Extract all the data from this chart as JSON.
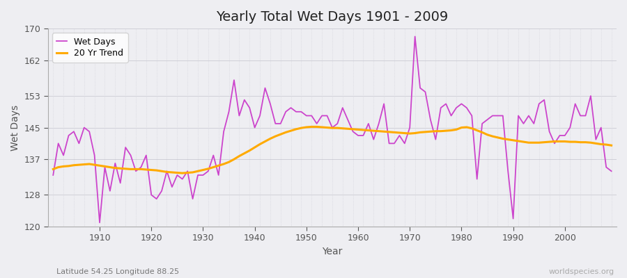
{
  "title": "Yearly Total Wet Days 1901 - 2009",
  "xlabel": "Year",
  "ylabel": "Wet Days",
  "subtitle_left": "Latitude 54.25 Longitude 88.25",
  "subtitle_right": "worldspecies.org",
  "ylim": [
    120,
    170
  ],
  "yticks": [
    120,
    128,
    137,
    145,
    153,
    162,
    170
  ],
  "wet_days_color": "#cc44cc",
  "trend_color": "#ffaa00",
  "background_color": "#eeeef2",
  "grid_color_h": "#d0d0d8",
  "grid_color_v": "#d0d0d8",
  "legend_wet": "Wet Days",
  "legend_trend": "20 Yr Trend",
  "years": [
    1901,
    1902,
    1903,
    1904,
    1905,
    1906,
    1907,
    1908,
    1909,
    1910,
    1911,
    1912,
    1913,
    1914,
    1915,
    1916,
    1917,
    1918,
    1919,
    1920,
    1921,
    1922,
    1923,
    1924,
    1925,
    1926,
    1927,
    1928,
    1929,
    1930,
    1931,
    1932,
    1933,
    1934,
    1935,
    1936,
    1937,
    1938,
    1939,
    1940,
    1941,
    1942,
    1943,
    1944,
    1945,
    1946,
    1947,
    1948,
    1949,
    1950,
    1951,
    1952,
    1953,
    1954,
    1955,
    1956,
    1957,
    1958,
    1959,
    1960,
    1961,
    1962,
    1963,
    1964,
    1965,
    1966,
    1967,
    1968,
    1969,
    1970,
    1971,
    1972,
    1973,
    1974,
    1975,
    1976,
    1977,
    1978,
    1979,
    1980,
    1981,
    1982,
    1983,
    1984,
    1985,
    1986,
    1987,
    1988,
    1989,
    1990,
    1991,
    1992,
    1993,
    1994,
    1995,
    1996,
    1997,
    1998,
    1999,
    2000,
    2001,
    2002,
    2003,
    2004,
    2005,
    2006,
    2007,
    2008,
    2009
  ],
  "wet_days": [
    133,
    141,
    138,
    143,
    144,
    141,
    145,
    144,
    138,
    121,
    135,
    129,
    136,
    131,
    140,
    138,
    134,
    135,
    138,
    128,
    127,
    129,
    134,
    130,
    133,
    132,
    134,
    127,
    133,
    133,
    134,
    138,
    133,
    144,
    149,
    157,
    148,
    152,
    150,
    145,
    148,
    155,
    151,
    146,
    146,
    149,
    150,
    149,
    149,
    148,
    148,
    146,
    148,
    148,
    145,
    146,
    150,
    147,
    144,
    143,
    143,
    146,
    142,
    146,
    151,
    141,
    141,
    143,
    141,
    145,
    168,
    155,
    154,
    147,
    142,
    150,
    151,
    148,
    150,
    151,
    150,
    148,
    132,
    146,
    147,
    148,
    148,
    148,
    134,
    122,
    148,
    146,
    148,
    146,
    151,
    152,
    144,
    141,
    143,
    143,
    145,
    151,
    148,
    148,
    153,
    142,
    145,
    135,
    134
  ],
  "trend": [
    134.5,
    135.0,
    135.2,
    135.3,
    135.5,
    135.6,
    135.7,
    135.8,
    135.6,
    135.4,
    135.2,
    135.0,
    134.8,
    134.7,
    134.6,
    134.5,
    134.5,
    134.5,
    134.4,
    134.3,
    134.2,
    134.0,
    133.8,
    133.7,
    133.6,
    133.5,
    133.6,
    133.7,
    134.0,
    134.3,
    134.6,
    135.0,
    135.4,
    135.8,
    136.3,
    137.0,
    137.8,
    138.5,
    139.2,
    140.0,
    140.8,
    141.5,
    142.2,
    142.8,
    143.3,
    143.8,
    144.2,
    144.6,
    144.9,
    145.1,
    145.2,
    145.2,
    145.1,
    145.0,
    144.9,
    144.9,
    144.8,
    144.7,
    144.6,
    144.5,
    144.4,
    144.3,
    144.2,
    144.1,
    144.0,
    143.9,
    143.8,
    143.7,
    143.6,
    143.5,
    143.6,
    143.8,
    143.9,
    144.0,
    144.1,
    144.1,
    144.2,
    144.3,
    144.5,
    145.0,
    145.1,
    144.8,
    144.3,
    143.8,
    143.2,
    142.8,
    142.5,
    142.2,
    142.0,
    141.8,
    141.6,
    141.4,
    141.2,
    141.2,
    141.2,
    141.3,
    141.4,
    141.5,
    141.5,
    141.5,
    141.4,
    141.4,
    141.3,
    141.3,
    141.2,
    141.0,
    140.8,
    140.7,
    140.5
  ]
}
